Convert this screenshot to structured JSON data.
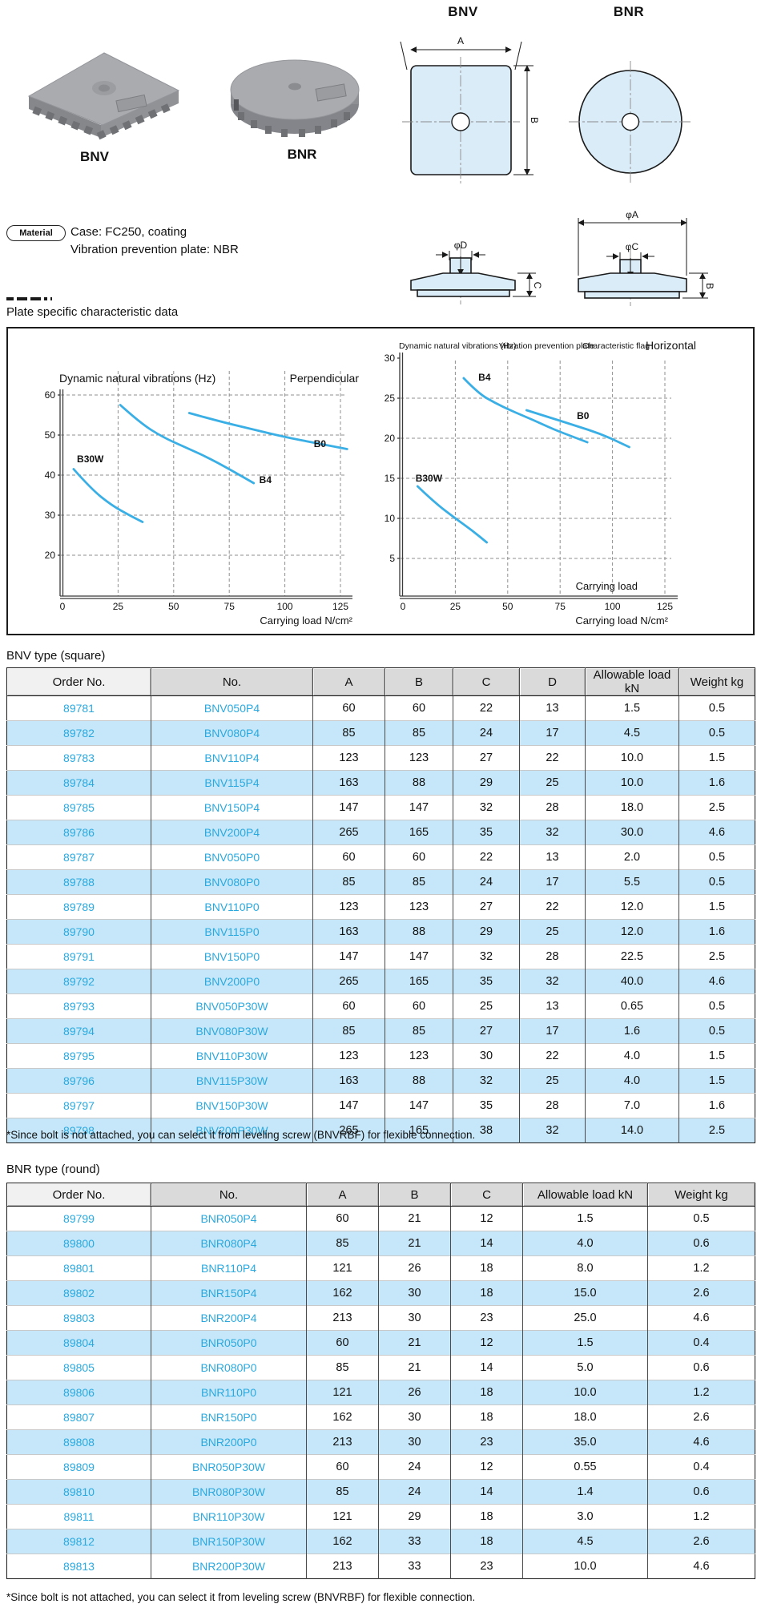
{
  "products": {
    "bnv_label": "BNV",
    "bnr_label": "BNR"
  },
  "drawings": {
    "bnv_title": "BNV",
    "bnr_title": "BNR",
    "dim_a": "A",
    "dim_b": "B",
    "dim_b_side": "B",
    "dim_c": "C",
    "dim_phi_a": "φA",
    "dim_phi_c": "φC",
    "dim_phi_d": "φD"
  },
  "material": {
    "badge": "Material",
    "case_line": "Case: FC250, coating",
    "plate_line": "Vibration prevention plate: NBR"
  },
  "section_title": "Plate specific characteristic data",
  "chart_data": [
    {
      "type": "line",
      "title": "Dynamic natural vibrations (Hz)",
      "orientation_label": "Perpendicular",
      "xlabel": "Carrying load N/cm²",
      "x_ticks": [
        0,
        25,
        50,
        75,
        100,
        125
      ],
      "y_ticks": [
        20,
        30,
        40,
        50,
        60
      ],
      "xlim": [
        0,
        125
      ],
      "ylim": [
        15,
        62
      ],
      "grid": "dashed",
      "series": [
        {
          "name": "B30W",
          "points": [
            [
              5,
              41.5
            ],
            [
              13,
              36.5
            ],
            [
              22,
              32.5
            ],
            [
              30,
              30
            ],
            [
              36,
              28.3
            ]
          ],
          "label_at": [
            6.5,
            43.2
          ]
        },
        {
          "name": "B4",
          "points": [
            [
              26,
              57.5
            ],
            [
              35,
              53
            ],
            [
              45,
              49.5
            ],
            [
              55,
              47
            ],
            [
              65,
              44.5
            ],
            [
              75,
              41.5
            ],
            [
              86,
              38
            ]
          ],
          "label_at": [
            88.5,
            38.0
          ]
        },
        {
          "name": "B0",
          "points": [
            [
              57,
              55.5
            ],
            [
              70,
              53.5
            ],
            [
              85,
              51.5
            ],
            [
              100,
              49.5
            ],
            [
              114,
              48
            ],
            [
              128,
              46.5
            ]
          ],
          "label_at": [
            113,
            47.0
          ]
        }
      ]
    },
    {
      "type": "line",
      "title": "Dynamic natural vibrations (Hz)",
      "header_labels": [
        "Vibration prevention plate",
        "Characteristic flag"
      ],
      "orientation_label": "Horizontal",
      "inner_label": "Carrying load",
      "xlabel": "Carrying load N/cm²",
      "x_ticks": [
        0,
        25,
        50,
        75,
        100,
        125
      ],
      "y_ticks": [
        5,
        10,
        15,
        20,
        25,
        30
      ],
      "xlim": [
        0,
        125
      ],
      "ylim": [
        0,
        30
      ],
      "grid": "dashed",
      "series": [
        {
          "name": "B4",
          "points": [
            [
              29,
              27.5
            ],
            [
              36,
              25.6
            ],
            [
              44,
              24.4
            ],
            [
              52,
              23.4
            ],
            [
              62,
              22.3
            ],
            [
              72,
              21.1
            ],
            [
              81,
              20.2
            ],
            [
              88,
              19.5
            ]
          ],
          "label_at": [
            36,
            27.2
          ]
        },
        {
          "name": "B0",
          "points": [
            [
              59,
              23.5
            ],
            [
              70,
              22.6
            ],
            [
              82,
              21.6
            ],
            [
              95,
              20.5
            ],
            [
              108,
              18.9
            ]
          ],
          "label_at": [
            83,
            22.4
          ]
        },
        {
          "name": "B30W",
          "points": [
            [
              7,
              14
            ],
            [
              15,
              12
            ],
            [
              25,
              10
            ],
            [
              33,
              8.5
            ],
            [
              40,
              7
            ]
          ],
          "label_at": [
            6,
            14.6
          ]
        }
      ]
    }
  ],
  "bnv_section": {
    "heading": "BNV type (square)",
    "columns": [
      "Order No.",
      "No.",
      "A",
      "B",
      "C",
      "D",
      "Allowable load kN",
      "Weight kg"
    ],
    "rows": [
      [
        "89781",
        "BNV050P4",
        "60",
        "60",
        "22",
        "13",
        "1.5",
        "0.5"
      ],
      [
        "89782",
        "BNV080P4",
        "85",
        "85",
        "24",
        "17",
        "4.5",
        "0.5"
      ],
      [
        "89783",
        "BNV110P4",
        "123",
        "123",
        "27",
        "22",
        "10.0",
        "1.5"
      ],
      [
        "89784",
        "BNV115P4",
        "163",
        "88",
        "29",
        "25",
        "10.0",
        "1.6"
      ],
      [
        "89785",
        "BNV150P4",
        "147",
        "147",
        "32",
        "28",
        "18.0",
        "2.5"
      ],
      [
        "89786",
        "BNV200P4",
        "265",
        "165",
        "35",
        "32",
        "30.0",
        "4.6"
      ],
      [
        "89787",
        "BNV050P0",
        "60",
        "60",
        "22",
        "13",
        "2.0",
        "0.5"
      ],
      [
        "89788",
        "BNV080P0",
        "85",
        "85",
        "24",
        "17",
        "5.5",
        "0.5"
      ],
      [
        "89789",
        "BNV110P0",
        "123",
        "123",
        "27",
        "22",
        "12.0",
        "1.5"
      ],
      [
        "89790",
        "BNV115P0",
        "163",
        "88",
        "29",
        "25",
        "12.0",
        "1.6"
      ],
      [
        "89791",
        "BNV150P0",
        "147",
        "147",
        "32",
        "28",
        "22.5",
        "2.5"
      ],
      [
        "89792",
        "BNV200P0",
        "265",
        "165",
        "35",
        "32",
        "40.0",
        "4.6"
      ],
      [
        "89793",
        "BNV050P30W",
        "60",
        "60",
        "25",
        "13",
        "0.65",
        "0.5"
      ],
      [
        "89794",
        "BNV080P30W",
        "85",
        "85",
        "27",
        "17",
        "1.6",
        "0.5"
      ],
      [
        "89795",
        "BNV110P30W",
        "123",
        "123",
        "30",
        "22",
        "4.0",
        "1.5"
      ],
      [
        "89796",
        "BNV115P30W",
        "163",
        "88",
        "32",
        "25",
        "4.0",
        "1.5"
      ],
      [
        "89797",
        "BNV150P30W",
        "147",
        "147",
        "35",
        "28",
        "7.0",
        "1.6"
      ],
      [
        "89798",
        "BNV200P30W",
        "265",
        "165",
        "38",
        "32",
        "14.0",
        "2.5"
      ]
    ],
    "footnote": "*Since bolt is not attached, you can select it from leveling screw (BNVRBF) for flexible connection."
  },
  "bnr_section": {
    "heading": "BNR type (round)",
    "columns": [
      "Order No.",
      "No.",
      "A",
      "B",
      "C",
      "Allowable load kN",
      "Weight kg"
    ],
    "rows": [
      [
        "89799",
        "BNR050P4",
        "60",
        "21",
        "12",
        "1.5",
        "0.5"
      ],
      [
        "89800",
        "BNR080P4",
        "85",
        "21",
        "14",
        "4.0",
        "0.6"
      ],
      [
        "89801",
        "BNR110P4",
        "121",
        "26",
        "18",
        "8.0",
        "1.2"
      ],
      [
        "89802",
        "BNR150P4",
        "162",
        "30",
        "18",
        "15.0",
        "2.6"
      ],
      [
        "89803",
        "BNR200P4",
        "213",
        "30",
        "23",
        "25.0",
        "4.6"
      ],
      [
        "89804",
        "BNR050P0",
        "60",
        "21",
        "12",
        "1.5",
        "0.4"
      ],
      [
        "89805",
        "BNR080P0",
        "85",
        "21",
        "14",
        "5.0",
        "0.6"
      ],
      [
        "89806",
        "BNR110P0",
        "121",
        "26",
        "18",
        "10.0",
        "1.2"
      ],
      [
        "89807",
        "BNR150P0",
        "162",
        "30",
        "18",
        "18.0",
        "2.6"
      ],
      [
        "89808",
        "BNR200P0",
        "213",
        "30",
        "23",
        "35.0",
        "4.6"
      ],
      [
        "89809",
        "BNR050P30W",
        "60",
        "24",
        "12",
        "0.55",
        "0.4"
      ],
      [
        "89810",
        "BNR080P30W",
        "85",
        "24",
        "14",
        "1.4",
        "0.6"
      ],
      [
        "89811",
        "BNR110P30W",
        "121",
        "29",
        "18",
        "3.0",
        "1.2"
      ],
      [
        "89812",
        "BNR150P30W",
        "162",
        "33",
        "18",
        "4.5",
        "2.6"
      ],
      [
        "89813",
        "BNR200P30W",
        "213",
        "33",
        "23",
        "10.0",
        "4.6"
      ]
    ],
    "footnote": "*Since bolt is not attached, you can select it from leveling screw (BNVRBF) for flexible connection."
  }
}
